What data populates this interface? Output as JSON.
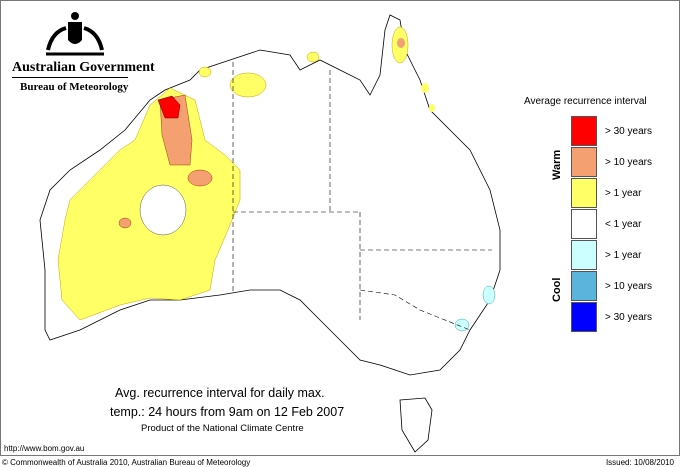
{
  "header": {
    "government": "Australian Government",
    "bureau": "Bureau of Meteorology",
    "logo": "coat-of-arms"
  },
  "legend": {
    "title": "Average recurrence interval",
    "warm_label": "Warm",
    "cool_label": "Cool",
    "items": [
      {
        "label": "> 30 years",
        "color": "#ff0000"
      },
      {
        "label": "> 10 years",
        "color": "#f4a070"
      },
      {
        "label": "> 1 year",
        "color": "#ffff66"
      },
      {
        "label": "< 1 year",
        "color": "#ffffff"
      },
      {
        "label": "> 1 year",
        "color": "#ccffff"
      },
      {
        "label": "> 10 years",
        "color": "#5ab4dc"
      },
      {
        "label": "> 30 years",
        "color": "#0000ff"
      }
    ]
  },
  "caption": {
    "line1": "Avg. recurrence interval for daily max.",
    "line2": "temp.: 24 hours from 9am on 12 Feb 2007",
    "line3": "Product of the National Climate Centre"
  },
  "footer": {
    "url": "http://www.bom.gov.au",
    "copyright": "© Commonwealth of Australia 2010, Australian Bureau of Meteorology",
    "issued": "Issued: 10/08/2010"
  }
}
